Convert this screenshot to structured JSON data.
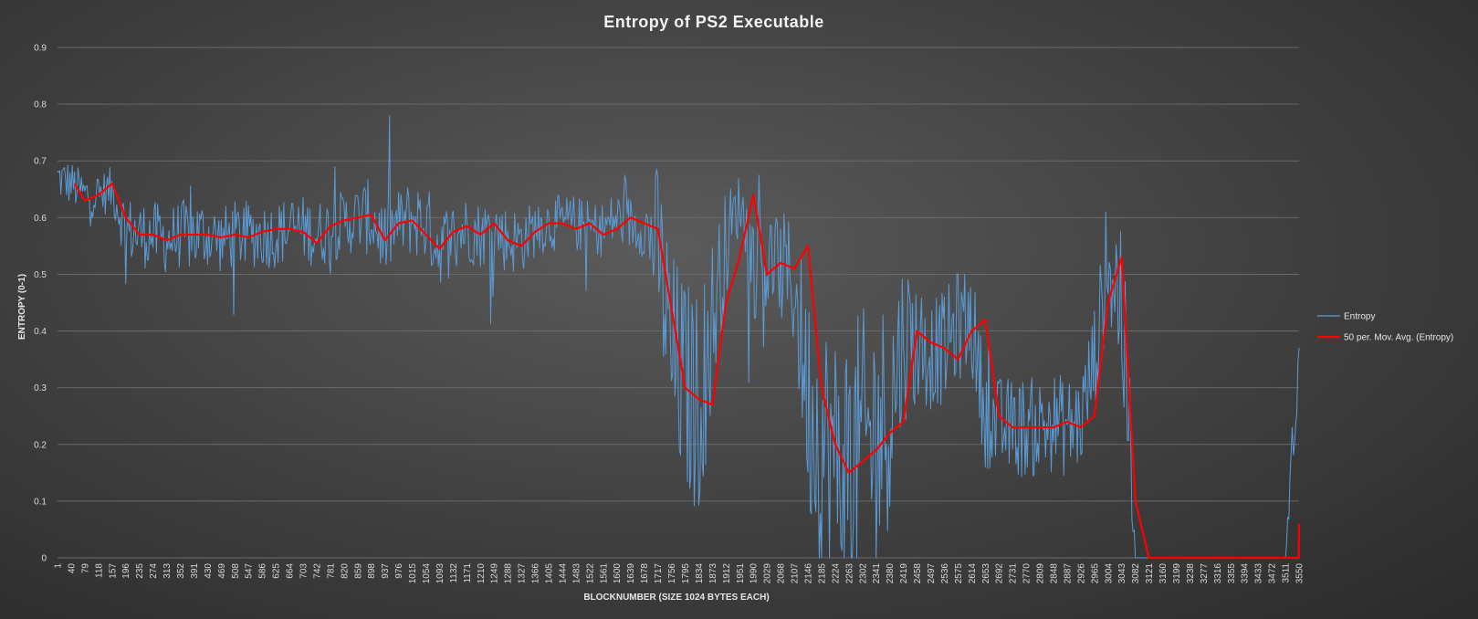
{
  "chart_data": {
    "type": "line",
    "title": "Entropy  of PS2 Executable",
    "xlabel": "BLOCKNUMBER (SIZE 1024 BYTES EACH)",
    "ylabel": "ENTROPY (0-1)",
    "ylim": [
      0,
      0.9
    ],
    "y_ticks": [
      "0",
      "0.1",
      "0.2",
      "0.3",
      "0.4",
      "0.5",
      "0.6",
      "0.7",
      "0.8",
      "0.9"
    ],
    "xlim": [
      1,
      3550
    ],
    "x_ticks": [
      "1",
      "40",
      "79",
      "118",
      "157",
      "196",
      "235",
      "274",
      "313",
      "352",
      "391",
      "430",
      "469",
      "508",
      "547",
      "586",
      "625",
      "664",
      "703",
      "742",
      "781",
      "820",
      "859",
      "898",
      "937",
      "976",
      "1015",
      "1054",
      "1093",
      "1132",
      "1171",
      "1210",
      "1249",
      "1288",
      "1327",
      "1366",
      "1405",
      "1444",
      "1483",
      "1522",
      "1561",
      "1600",
      "1639",
      "1678",
      "1717",
      "1756",
      "1795",
      "1834",
      "1873",
      "1912",
      "1951",
      "1990",
      "2029",
      "2068",
      "2107",
      "2146",
      "2185",
      "2224",
      "2263",
      "2302",
      "2341",
      "2380",
      "2419",
      "2458",
      "2497",
      "2536",
      "2575",
      "2614",
      "2653",
      "2692",
      "2731",
      "2770",
      "2809",
      "2848",
      "2887",
      "2926",
      "2965",
      "3004",
      "3043",
      "3082",
      "3121",
      "3160",
      "3199",
      "3238",
      "3277",
      "3316",
      "3355",
      "3394",
      "3433",
      "3472",
      "3511",
      "3550"
    ],
    "grid": true,
    "legend_position": "right",
    "series": [
      {
        "name": "Entropy",
        "color": "#5b9bd5",
        "style": "noisy-raw",
        "x": [
          1,
          40,
          79,
          118,
          157,
          196,
          235,
          274,
          313,
          352,
          391,
          430,
          469,
          508,
          547,
          586,
          625,
          664,
          703,
          742,
          781,
          820,
          859,
          898,
          937,
          976,
          1015,
          1054,
          1093,
          1132,
          1171,
          1210,
          1249,
          1288,
          1327,
          1366,
          1405,
          1444,
          1483,
          1522,
          1561,
          1600,
          1639,
          1678,
          1717,
          1756,
          1795,
          1834,
          1873,
          1912,
          1951,
          1990,
          2029,
          2068,
          2107,
          2146,
          2185,
          2224,
          2263,
          2302,
          2341,
          2380,
          2419,
          2458,
          2497,
          2536,
          2575,
          2614,
          2653,
          2692,
          2731,
          2770,
          2809,
          2848,
          2887,
          2926,
          2965,
          3004,
          3043,
          3082,
          3121,
          3160,
          3199,
          3238,
          3277,
          3316,
          3355,
          3394,
          3433,
          3472,
          3511,
          3550
        ],
        "y": [
          0.67,
          0.66,
          0.64,
          0.64,
          0.65,
          0.58,
          0.57,
          0.57,
          0.56,
          0.57,
          0.57,
          0.57,
          0.56,
          0.57,
          0.57,
          0.57,
          0.57,
          0.58,
          0.58,
          0.57,
          0.58,
          0.59,
          0.6,
          0.6,
          0.56,
          0.59,
          0.6,
          0.59,
          0.55,
          0.57,
          0.58,
          0.57,
          0.58,
          0.56,
          0.56,
          0.58,
          0.59,
          0.59,
          0.59,
          0.58,
          0.58,
          0.6,
          0.59,
          0.58,
          0.55,
          0.35,
          0.3,
          0.27,
          0.42,
          0.55,
          0.63,
          0.52,
          0.52,
          0.51,
          0.48,
          0.28,
          0.2,
          0.16,
          0.17,
          0.19,
          0.22,
          0.26,
          0.39,
          0.38,
          0.36,
          0.37,
          0.41,
          0.42,
          0.25,
          0.23,
          0.23,
          0.23,
          0.23,
          0.24,
          0.23,
          0.24,
          0.35,
          0.52,
          0.45,
          0.0,
          0.0,
          0.0,
          0.0,
          0.0,
          0.0,
          0.0,
          0.0,
          0.0,
          0.0,
          0.0,
          0.0,
          0.37
        ],
        "noise": [
          0.04,
          0.04,
          0.04,
          0.04,
          0.04,
          0.06,
          0.06,
          0.06,
          0.06,
          0.06,
          0.07,
          0.06,
          0.06,
          0.06,
          0.06,
          0.06,
          0.06,
          0.06,
          0.06,
          0.06,
          0.06,
          0.06,
          0.06,
          0.07,
          0.07,
          0.06,
          0.07,
          0.07,
          0.07,
          0.06,
          0.06,
          0.06,
          0.06,
          0.06,
          0.06,
          0.05,
          0.05,
          0.05,
          0.05,
          0.05,
          0.05,
          0.05,
          0.05,
          0.05,
          0.15,
          0.2,
          0.2,
          0.2,
          0.15,
          0.1,
          0.05,
          0.1,
          0.1,
          0.1,
          0.12,
          0.2,
          0.25,
          0.25,
          0.25,
          0.25,
          0.25,
          0.2,
          0.15,
          0.12,
          0.1,
          0.1,
          0.1,
          0.1,
          0.09,
          0.09,
          0.09,
          0.09,
          0.09,
          0.09,
          0.09,
          0.09,
          0.1,
          0.1,
          0.2,
          0.0,
          0.0,
          0.0,
          0.0,
          0.0,
          0.0,
          0.0,
          0.0,
          0.0,
          0.0,
          0.0,
          0.0,
          0.1
        ]
      },
      {
        "name": "50 per. Mov. Avg. (Entropy)",
        "color": "#ff0000",
        "style": "smooth",
        "x": [
          50,
          79,
          118,
          157,
          196,
          235,
          274,
          313,
          352,
          391,
          430,
          469,
          508,
          547,
          586,
          625,
          664,
          703,
          742,
          781,
          820,
          859,
          898,
          937,
          976,
          1015,
          1054,
          1093,
          1132,
          1171,
          1210,
          1249,
          1288,
          1327,
          1366,
          1405,
          1444,
          1483,
          1522,
          1561,
          1600,
          1639,
          1678,
          1717,
          1756,
          1795,
          1834,
          1873,
          1912,
          1951,
          1990,
          2029,
          2068,
          2107,
          2146,
          2185,
          2224,
          2263,
          2302,
          2341,
          2380,
          2419,
          2458,
          2497,
          2536,
          2575,
          2614,
          2653,
          2692,
          2731,
          2770,
          2809,
          2848,
          2887,
          2926,
          2965,
          3004,
          3043,
          3082,
          3121,
          3160,
          3199,
          3238,
          3277,
          3316,
          3355,
          3394,
          3433,
          3472,
          3511,
          3549,
          3550
        ],
        "y": [
          0.66,
          0.63,
          0.64,
          0.66,
          0.6,
          0.57,
          0.57,
          0.56,
          0.57,
          0.57,
          0.57,
          0.565,
          0.57,
          0.565,
          0.575,
          0.58,
          0.58,
          0.575,
          0.555,
          0.585,
          0.595,
          0.6,
          0.605,
          0.56,
          0.59,
          0.595,
          0.57,
          0.545,
          0.575,
          0.585,
          0.57,
          0.59,
          0.56,
          0.55,
          0.575,
          0.59,
          0.59,
          0.58,
          0.59,
          0.57,
          0.58,
          0.6,
          0.59,
          0.58,
          0.44,
          0.3,
          0.28,
          0.27,
          0.45,
          0.53,
          0.64,
          0.5,
          0.52,
          0.51,
          0.55,
          0.3,
          0.2,
          0.15,
          0.17,
          0.19,
          0.22,
          0.24,
          0.4,
          0.38,
          0.37,
          0.35,
          0.4,
          0.42,
          0.25,
          0.23,
          0.23,
          0.23,
          0.23,
          0.24,
          0.23,
          0.25,
          0.45,
          0.53,
          0.1,
          0.0,
          0.0,
          0.0,
          0.0,
          0.0,
          0.0,
          0.0,
          0.0,
          0.0,
          0.0,
          0.0,
          0.0,
          0.06
        ]
      }
    ]
  }
}
